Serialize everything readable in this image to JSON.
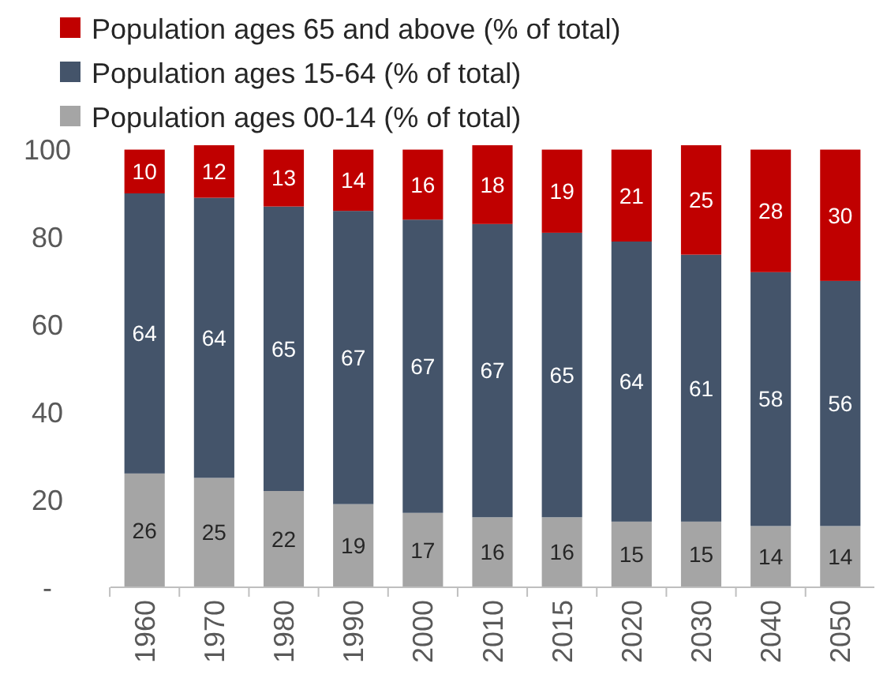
{
  "chart_data": {
    "type": "bar",
    "stacked": true,
    "data_labels": true,
    "grid": false,
    "legend": "top left",
    "categories": [
      "1960",
      "1970",
      "1980",
      "1990",
      "2000",
      "2010",
      "2015",
      "2020",
      "2030",
      "2040",
      "2050"
    ],
    "series": [
      {
        "name": "Population ages 00-14 (% of total)",
        "color": "#a5a5a5",
        "values": [
          26,
          25,
          22,
          19,
          17,
          16,
          16,
          15,
          15,
          14,
          14
        ]
      },
      {
        "name": "Population ages 15-64 (% of total)",
        "color": "#44546a",
        "values": [
          64,
          64,
          65,
          67,
          67,
          67,
          65,
          64,
          61,
          58,
          56
        ]
      },
      {
        "name": "Population ages 65 and above (% of total)",
        "color": "#c00000",
        "values": [
          10,
          12,
          13,
          14,
          16,
          18,
          19,
          21,
          25,
          28,
          30
        ]
      }
    ],
    "ylim": [
      0,
      101
    ],
    "yticks": [
      {
        "value": 0,
        "label": "-"
      },
      20,
      40,
      60,
      80,
      100
    ]
  }
}
